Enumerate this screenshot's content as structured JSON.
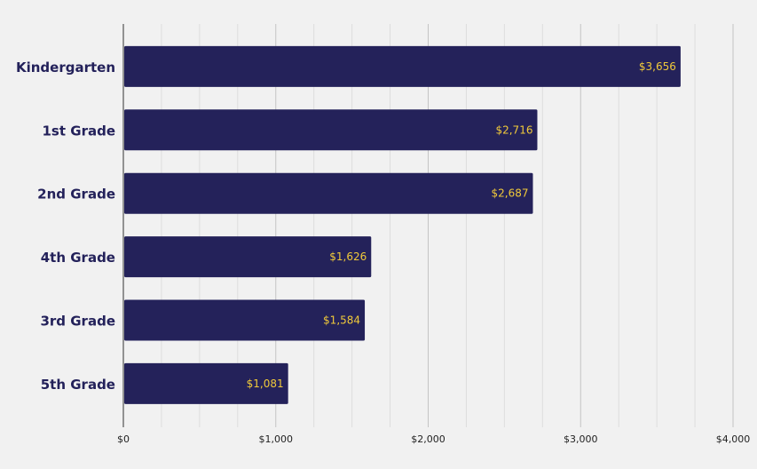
{
  "chart_data": {
    "type": "bar",
    "orientation": "horizontal",
    "categories": [
      "Kindergarten",
      "1st Grade",
      "2nd Grade",
      "4th Grade",
      "3rd Grade",
      "5th Grade"
    ],
    "values": [
      3656,
      2716,
      2687,
      1626,
      1584,
      1081
    ],
    "value_labels": [
      "$3,656",
      "$2,716",
      "$2,687",
      "$1,626",
      "$1,584",
      "$1,081"
    ],
    "x_ticks": [
      0,
      1000,
      2000,
      3000,
      4000
    ],
    "x_tick_labels": [
      "$0",
      "$1,000",
      "$2,000",
      "$3,000",
      "$4,000"
    ],
    "xlim": [
      0,
      4000
    ],
    "title": "",
    "xlabel": "",
    "ylabel": "",
    "grid": true,
    "legend": "none",
    "colors": {
      "bar": "#24225a",
      "value_label": "#f0c93a",
      "category_label": "#23215a",
      "grid_major": "#c4c4c4",
      "grid_minor": "#dddddd",
      "axis": "#333333",
      "background": "#f1f1f1"
    }
  }
}
